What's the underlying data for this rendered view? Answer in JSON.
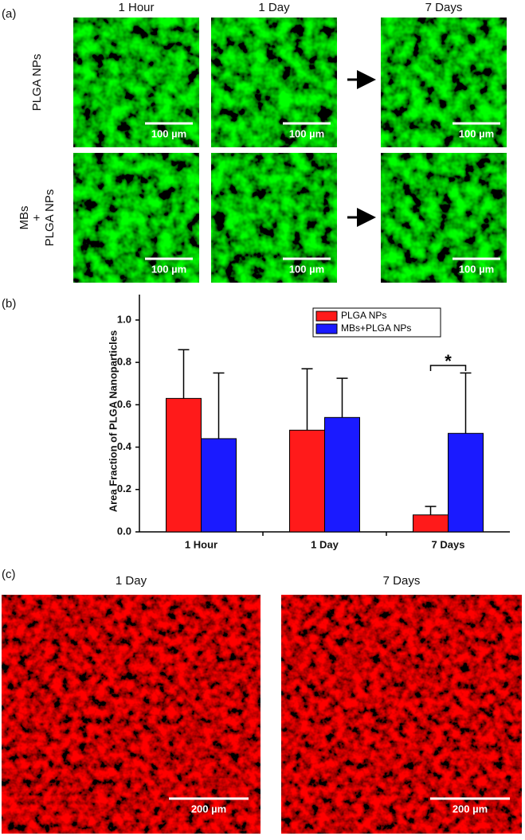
{
  "panel_a": {
    "label": "(a)",
    "columns": [
      "1 Hour",
      "1 Day",
      "7 Days"
    ],
    "rows": [
      [
        "PLGA NPs"
      ],
      [
        "MBs",
        "+",
        "PLGA NPs"
      ]
    ],
    "scale_bars": [
      "100 µm",
      "100 µm",
      "100 µm",
      "100 µm",
      "100 µm",
      "100 µm"
    ]
  },
  "chart_data": {
    "type": "bar",
    "panel_label": "(b)",
    "ylabel": "Area Fraction of PLGA Nanoparticles",
    "categories": [
      "1 Hour",
      "1 Day",
      "7 Days"
    ],
    "series": [
      {
        "name": "PLGA NPs",
        "color": "#ff1a1a",
        "values": [
          0.63,
          0.48,
          0.08
        ],
        "errors": [
          0.23,
          0.29,
          0.04
        ]
      },
      {
        "name": "MBs+PLGA NPs",
        "color": "#1a1aff",
        "values": [
          0.44,
          0.54,
          0.465
        ],
        "errors": [
          0.31,
          0.185,
          0.285
        ]
      }
    ],
    "ylim": [
      0,
      1.12
    ],
    "yticks": [
      {
        "value": 0,
        "label": "0.0"
      },
      0.2,
      0.4,
      0.6,
      0.8,
      {
        "value": 1,
        "label": "1.0"
      }
    ],
    "annotation": "*",
    "legend": "top-right"
  },
  "panel_c": {
    "label": "(c)",
    "columns": [
      "1 Day",
      "7 Days"
    ],
    "scale_bars": [
      "200 µm",
      "200 µm"
    ]
  }
}
